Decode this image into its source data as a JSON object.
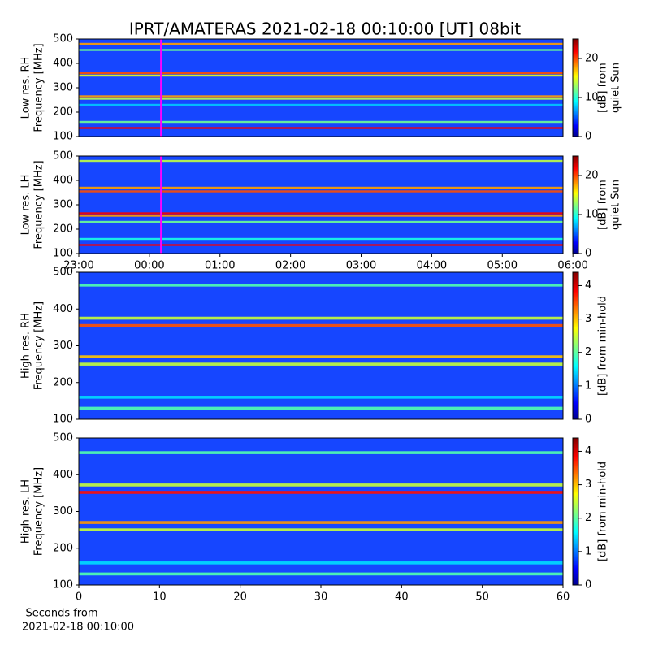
{
  "title": "IPRT/AMATERAS 2021-02-18 00:10:00 [UT]   08bit",
  "xlabel": "Seconds from\n2021-02-18 00:10:00",
  "chart_data": [
    {
      "type": "heatmap",
      "ylabel": "Low res. RH\nFrequency [MHz]",
      "ylim": [
        100,
        500
      ],
      "yticks": [
        100,
        200,
        300,
        400,
        500
      ],
      "xlim": [
        23,
        29.86
      ],
      "marker_x": 24.1667,
      "marker_color": "#ff00ff",
      "clabel": "[dB] from\nquiet Sun",
      "clim": [
        0,
        25
      ],
      "cticks": [
        0,
        10,
        20
      ],
      "y": [
        480,
        455,
        360,
        350,
        265,
        255,
        230,
        160,
        135
      ],
      "values": [
        18,
        12,
        20,
        15,
        18,
        14,
        8,
        12,
        22
      ]
    },
    {
      "type": "heatmap",
      "ylabel": "Low res. LH\nFrequency [MHz]",
      "ylim": [
        100,
        500
      ],
      "yticks": [
        100,
        200,
        300,
        400,
        500
      ],
      "xlim": [
        23,
        29.86
      ],
      "marker_x": 24.1667,
      "marker_color": "#ff00ff",
      "xticks": [
        {
          "value": 23,
          "label": "23:00"
        },
        {
          "value": 24,
          "label": "00:00"
        },
        {
          "value": 25,
          "label": "01:00"
        },
        {
          "value": 26,
          "label": "02:00"
        },
        {
          "value": 27,
          "label": "03:00"
        },
        {
          "value": 28,
          "label": "04:00"
        },
        {
          "value": 29,
          "label": "05:00"
        },
        {
          "value": 30,
          "label": "06:00"
        }
      ],
      "clabel": "[dB] from\nquiet Sun",
      "clim": [
        0,
        25
      ],
      "cticks": [
        0,
        10,
        20
      ],
      "y": [
        480,
        370,
        355,
        265,
        255,
        230,
        160,
        135
      ],
      "values": [
        14,
        18,
        20,
        22,
        18,
        12,
        10,
        22
      ]
    },
    {
      "type": "heatmap",
      "ylabel": "High res. RH\nFrequency [MHz]",
      "ylim": [
        100,
        500
      ],
      "yticks": [
        100,
        200,
        300,
        400,
        500
      ],
      "xlim": [
        0,
        60
      ],
      "clabel": "[dB] from min-hold",
      "clim": [
        0,
        4.4
      ],
      "cticks": [
        0,
        1,
        2,
        3,
        4
      ],
      "y": [
        465,
        375,
        355,
        270,
        250,
        160,
        130
      ],
      "values": [
        2,
        2.5,
        3.5,
        3,
        2.5,
        1.5,
        2
      ]
    },
    {
      "type": "heatmap",
      "ylabel": "High res. LH\nFrequency [MHz]",
      "ylim": [
        100,
        500
      ],
      "yticks": [
        100,
        200,
        300,
        400,
        500
      ],
      "xlim": [
        0,
        60
      ],
      "xticks": [
        0,
        10,
        20,
        30,
        40,
        50,
        60
      ],
      "clabel": "[dB] from min-hold",
      "clim": [
        0,
        4.4
      ],
      "cticks": [
        0,
        1,
        2,
        3,
        4
      ],
      "y": [
        460,
        372,
        352,
        270,
        250,
        160,
        130
      ],
      "values": [
        2,
        2.5,
        3.8,
        3.2,
        2.5,
        1.5,
        2
      ]
    }
  ]
}
